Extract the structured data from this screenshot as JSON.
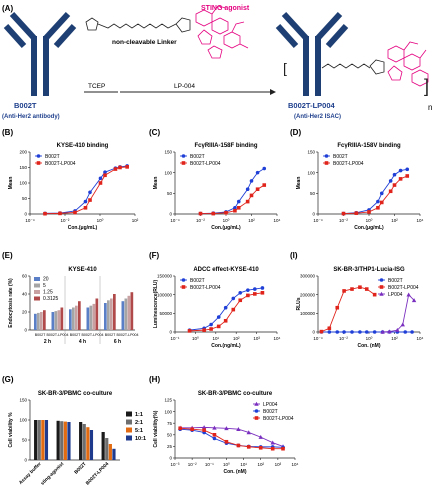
{
  "figure": {
    "panel_letters": [
      "(A)",
      "(B)",
      "(C)",
      "(D)",
      "(E)",
      "(F)",
      "(I)",
      "(G)",
      "(H)"
    ],
    "schematic": {
      "antibody_name": "B002T",
      "antibody_desc": "(Anti-Her2 antibody)",
      "step1": "TCEP",
      "step2": "LP-004",
      "payload_label": "STING agonist",
      "linker_label": "non-cleavable Linker",
      "product_name": "B002T-LP004",
      "product_desc": "(Anti-Her2 ISAC)",
      "n": "n",
      "colors": {
        "antibody": "#1e3f73",
        "payload": "#e4007f",
        "text_blue": "#1e3f8c"
      }
    }
  },
  "chart_data": [
    {
      "id": "B",
      "type": "line",
      "title": "KYSE-410 binding",
      "xlabel": "Con.(μg/mL)",
      "ylabel": "Mean",
      "xscale": "log",
      "xlim": [
        0.0001,
        1000
      ],
      "xticks": [
        "10⁻⁴",
        "10⁻²",
        "10⁰",
        "10²"
      ],
      "ylim": [
        0,
        200
      ],
      "yticks": [
        "0",
        "50",
        "100",
        "150",
        "200"
      ],
      "legend": "top-left",
      "x": [
        0.001,
        0.01,
        0.1,
        0.5,
        1,
        5,
        10,
        50,
        100,
        300
      ],
      "series": [
        {
          "name": "B002T",
          "color": "#1f3fd6",
          "marker": "circle",
          "values": [
            2,
            3,
            10,
            40,
            70,
            115,
            135,
            148,
            152,
            155
          ]
        },
        {
          "name": "B002T-LP004",
          "color": "#e0241b",
          "marker": "square",
          "values": [
            1,
            2,
            5,
            20,
            45,
            100,
            125,
            145,
            150,
            152
          ]
        }
      ]
    },
    {
      "id": "C",
      "type": "line",
      "title": "FcγRIIIA-158F binding",
      "xlabel": "Con.(μg/mL)",
      "ylabel": "Mean",
      "xscale": "log",
      "xlim": [
        0.0001,
        10000
      ],
      "xticks": [
        "10⁻⁴",
        "10⁻²",
        "10⁰",
        "10²",
        "10⁴"
      ],
      "ylim": [
        0,
        150
      ],
      "yticks": [
        "0",
        "50",
        "100",
        "150"
      ],
      "legend": "top-left",
      "x": [
        0.01,
        0.1,
        1,
        5,
        10,
        50,
        100,
        300,
        1000
      ],
      "series": [
        {
          "name": "B002T",
          "color": "#1f3fd6",
          "marker": "circle",
          "values": [
            1,
            2,
            5,
            15,
            30,
            60,
            80,
            100,
            110
          ]
        },
        {
          "name": "B002T-LP004",
          "color": "#e0241b",
          "marker": "square",
          "values": [
            1,
            1,
            3,
            8,
            15,
            30,
            45,
            60,
            70
          ]
        }
      ]
    },
    {
      "id": "D",
      "type": "line",
      "title": "FcγRIIIA-158V binding",
      "xlabel": "Con.(μg/mL)",
      "ylabel": "Mean",
      "xscale": "log",
      "xlim": [
        0.0001,
        10000
      ],
      "xticks": [
        "10⁻⁴",
        "10⁻²",
        "10⁰",
        "10²",
        "10⁴"
      ],
      "ylim": [
        0,
        150
      ],
      "yticks": [
        "0",
        "50",
        "100",
        "150"
      ],
      "legend": "top-left",
      "x": [
        0.01,
        0.1,
        1,
        5,
        10,
        50,
        100,
        300,
        1000
      ],
      "series": [
        {
          "name": "B002T",
          "color": "#1f3fd6",
          "marker": "circle",
          "values": [
            1,
            3,
            10,
            30,
            50,
            80,
            95,
            105,
            108
          ]
        },
        {
          "name": "B002T-LP004",
          "color": "#e0241b",
          "marker": "square",
          "values": [
            1,
            2,
            5,
            15,
            28,
            55,
            70,
            85,
            92
          ]
        }
      ]
    },
    {
      "id": "E",
      "type": "bar",
      "title": "KYSE-410",
      "ylabel": "Endocytosis rate (%)",
      "ylim": [
        0,
        60
      ],
      "yticks": [
        "0",
        "20",
        "40",
        "60"
      ],
      "legend": "top-left",
      "groups": [
        "2 h",
        "4 h",
        "6 h"
      ],
      "subgroups": [
        "B002T",
        "B002T-LP004"
      ],
      "series": [
        {
          "name": "20",
          "color": "#5b7fc7",
          "values": [
            18,
            20,
            23,
            25,
            30,
            32
          ]
        },
        {
          "name": "5",
          "color": "#a5a5a5",
          "values": [
            19,
            21,
            25,
            27,
            33,
            35
          ]
        },
        {
          "name": "1.25",
          "color": "#c8a2a2",
          "values": [
            20,
            22,
            27,
            29,
            35,
            38
          ]
        },
        {
          "name": "0.3125",
          "color": "#b04a4a",
          "values": [
            22,
            25,
            32,
            35,
            40,
            42
          ]
        }
      ]
    },
    {
      "id": "F",
      "type": "line",
      "title": "ADCC effect-KYSE-410",
      "xlabel": "Con.(ng/mL)",
      "ylabel": "Luminescence(RLU)",
      "xscale": "log",
      "xlim": [
        0.01,
        100000
      ],
      "xticks": [
        "10⁻¹",
        "10⁰",
        "10¹",
        "10²",
        "10³",
        "10⁴"
      ],
      "ylim": [
        0,
        150000
      ],
      "yticks": [
        "0",
        "50000",
        "100000",
        "150000"
      ],
      "legend": "top-left",
      "x": [
        0.1,
        1,
        3,
        10,
        30,
        100,
        300,
        1000,
        3000,
        10000
      ],
      "series": [
        {
          "name": "B002T",
          "color": "#1f3fd6",
          "marker": "circle",
          "values": [
            5000,
            10000,
            20000,
            40000,
            65000,
            90000,
            105000,
            112000,
            115000,
            118000
          ]
        },
        {
          "name": "B002T-LP004",
          "color": "#e0241b",
          "marker": "square",
          "values": [
            3000,
            5000,
            8000,
            15000,
            30000,
            60000,
            85000,
            98000,
            102000,
            105000
          ]
        }
      ]
    },
    {
      "id": "I",
      "type": "line",
      "title": "SK-BR-3/THP1-Lucia-ISG",
      "xlabel": "Con. (nM)",
      "ylabel": "RLUs",
      "xscale": "log",
      "xlim": [
        0.0001,
        100000
      ],
      "xticks": [
        "10⁻⁴",
        "10⁻²",
        "10⁰",
        "10²",
        "10⁴"
      ],
      "ylim": [
        0,
        300000
      ],
      "yticks": [
        "0",
        "100000",
        "200000",
        "300000"
      ],
      "legend": "top-right",
      "series": [
        {
          "name": "B002T",
          "color": "#1f3fd6",
          "marker": "circle",
          "x": [
            0.0002,
            0.001,
            0.005,
            0.02,
            0.1,
            0.5,
            2,
            10,
            50,
            200,
            1000,
            5000,
            20000
          ],
          "values": [
            0,
            0,
            0,
            0,
            0,
            0,
            0,
            0,
            0,
            0,
            0,
            0,
            0
          ]
        },
        {
          "name": "B002T-LP004",
          "color": "#e0241b",
          "marker": "square",
          "x": [
            0.0002,
            0.001,
            0.005,
            0.02,
            0.1,
            0.5,
            2,
            10
          ],
          "values": [
            2000,
            20000,
            130000,
            220000,
            230000,
            240000,
            230000,
            200000
          ]
        },
        {
          "name": "LP004",
          "color": "#7a2fbf",
          "marker": "triangle",
          "x": [
            50,
            200,
            1000,
            3000,
            10000,
            30000
          ],
          "values": [
            0,
            2000,
            10000,
            40000,
            200000,
            170000
          ]
        }
      ]
    },
    {
      "id": "G",
      "type": "bar",
      "title": "SK-BR-3/PBMC co-culture",
      "ylabel": "Cell viability %",
      "ylim": [
        0,
        150
      ],
      "yticks": [
        "0",
        "50",
        "100",
        "150"
      ],
      "legend": "right",
      "categories": [
        "Assay buffer",
        "sting-agonist",
        "B002T",
        "B002T-LP004"
      ],
      "series": [
        {
          "name": "1:1",
          "color": "#1a1a1a",
          "values": [
            100,
            98,
            95,
            70
          ]
        },
        {
          "name": "2:1",
          "color": "#6e6e6e",
          "values": [
            100,
            97,
            90,
            55
          ]
        },
        {
          "name": "5:1",
          "color": "#e26a10",
          "values": [
            100,
            96,
            82,
            40
          ]
        },
        {
          "name": "10:1",
          "color": "#1d3a8c",
          "values": [
            100,
            95,
            75,
            28
          ]
        }
      ]
    },
    {
      "id": "H",
      "type": "line",
      "title": "SK-BR-3/PBMC co-culture",
      "xlabel": "Con. (nM)",
      "ylabel": "Cell viability(%)",
      "xscale": "log",
      "xlim": [
        0.001,
        10000
      ],
      "xticks": [
        "10⁻³",
        "10⁻²",
        "10⁻¹",
        "10⁰",
        "10¹",
        "10²",
        "10³",
        "10⁴"
      ],
      "ylim": [
        0,
        125
      ],
      "yticks": [
        "0",
        "25",
        "50",
        "75",
        "100",
        "125"
      ],
      "legend": "top-right",
      "x": [
        0.002,
        0.01,
        0.05,
        0.2,
        1,
        5,
        20,
        100,
        500,
        2000
      ],
      "series": [
        {
          "name": "LP004",
          "color": "#7a2fbf",
          "marker": "triangle",
          "values": [
            65,
            65,
            66,
            65,
            64,
            62,
            55,
            45,
            33,
            25
          ]
        },
        {
          "name": "B002T",
          "color": "#1f3fd6",
          "marker": "circle",
          "values": [
            62,
            60,
            55,
            42,
            32,
            27,
            25,
            24,
            24,
            23
          ]
        },
        {
          "name": "B002T-LP004",
          "color": "#e0241b",
          "marker": "square",
          "values": [
            64,
            62,
            60,
            50,
            35,
            27,
            24,
            22,
            20,
            20
          ]
        }
      ]
    }
  ]
}
